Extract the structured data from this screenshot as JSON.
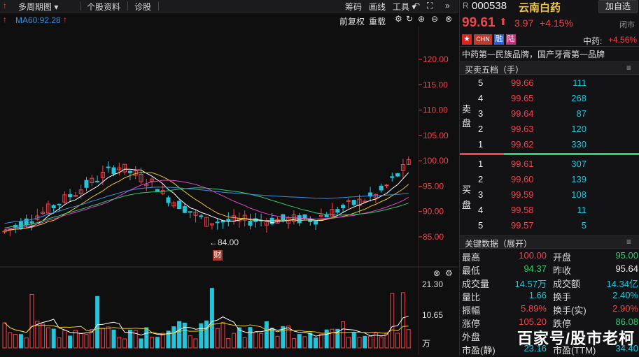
{
  "toolbar": {
    "period": "多周期图",
    "stock_info": "个股资料",
    "diagnose": "诊股",
    "chips": "筹码",
    "draw": "画线",
    "tools": "工具"
  },
  "ma_row": {
    "ma60": "MA60:92.28",
    "adjust": "前复权",
    "overlay": "重载"
  },
  "price_axis": [
    "120.00",
    "115.00",
    "110.00",
    "105.00",
    "100.00",
    "95.00",
    "90.00",
    "85.00"
  ],
  "low_marker": "←84.00",
  "finance_badge": "财",
  "volume_axis": [
    "21.30",
    "10.65",
    "万"
  ],
  "stock": {
    "market_prefix": "R",
    "code": "000538",
    "name": "云南白药",
    "add_watch": "加自选",
    "price": "99.61",
    "change": "3.97",
    "change_pct": "+4.15%",
    "status": "闭市",
    "flags": [
      "CHN",
      "融",
      "陆"
    ],
    "sector": "中药:",
    "sector_pct": "+4.56%",
    "slogan": "中药第一民族品牌，国产牙膏第一品牌"
  },
  "orderbook": {
    "title": "买卖五档（手）",
    "sell_label": [
      "卖",
      "盘"
    ],
    "buy_label": [
      "买",
      "盘"
    ],
    "asks": [
      {
        "level": "5",
        "price": "99.66",
        "vol": "111"
      },
      {
        "level": "4",
        "price": "99.65",
        "vol": "268"
      },
      {
        "level": "3",
        "price": "99.64",
        "vol": "87"
      },
      {
        "level": "2",
        "price": "99.63",
        "vol": "120"
      },
      {
        "level": "1",
        "price": "99.62",
        "vol": "330"
      }
    ],
    "bids": [
      {
        "level": "1",
        "price": "99.61",
        "vol": "307"
      },
      {
        "level": "2",
        "price": "99.60",
        "vol": "139"
      },
      {
        "level": "3",
        "price": "99.59",
        "vol": "108"
      },
      {
        "level": "4",
        "price": "99.58",
        "vol": "11"
      },
      {
        "level": "5",
        "price": "99.57",
        "vol": "5"
      }
    ]
  },
  "keydata": {
    "title": "关键数据（展开）",
    "rows": [
      {
        "l1": "最高",
        "v1": "100.00",
        "l2": "开盘",
        "v2": "95.00"
      },
      {
        "l1": "最低",
        "v1": "94.37",
        "l2": "昨收",
        "v2": "95.64"
      },
      {
        "l1": "成交量",
        "v1": "14.57万",
        "l2": "成交额",
        "v2": "14.34亿"
      },
      {
        "l1": "量比",
        "v1": "1.66",
        "l2": "换手",
        "v2": "2.40%"
      },
      {
        "l1": "振幅",
        "v1": "5.89%",
        "l2": "换手(实)",
        "v2": "2.90%"
      },
      {
        "l1": "涨停",
        "v1": "105.20",
        "l2": "跌停",
        "v2": "86.08"
      },
      {
        "l1": "外盘",
        "v1": "",
        "l2": "",
        "v2": ""
      },
      {
        "l1": "市盈(静)",
        "v1": "23.16",
        "l2": "市盈(TTM)",
        "v2": "34.40"
      }
    ]
  },
  "watermark": "百家号/股市老柯",
  "colors": {
    "up": "#f5414a",
    "down": "#25c4d8",
    "ma5": "#ffffff",
    "ma10": "#f0c419",
    "ma20": "#e040c8",
    "ma30": "#2ecc71",
    "ma60": "#3a8fe0"
  }
}
